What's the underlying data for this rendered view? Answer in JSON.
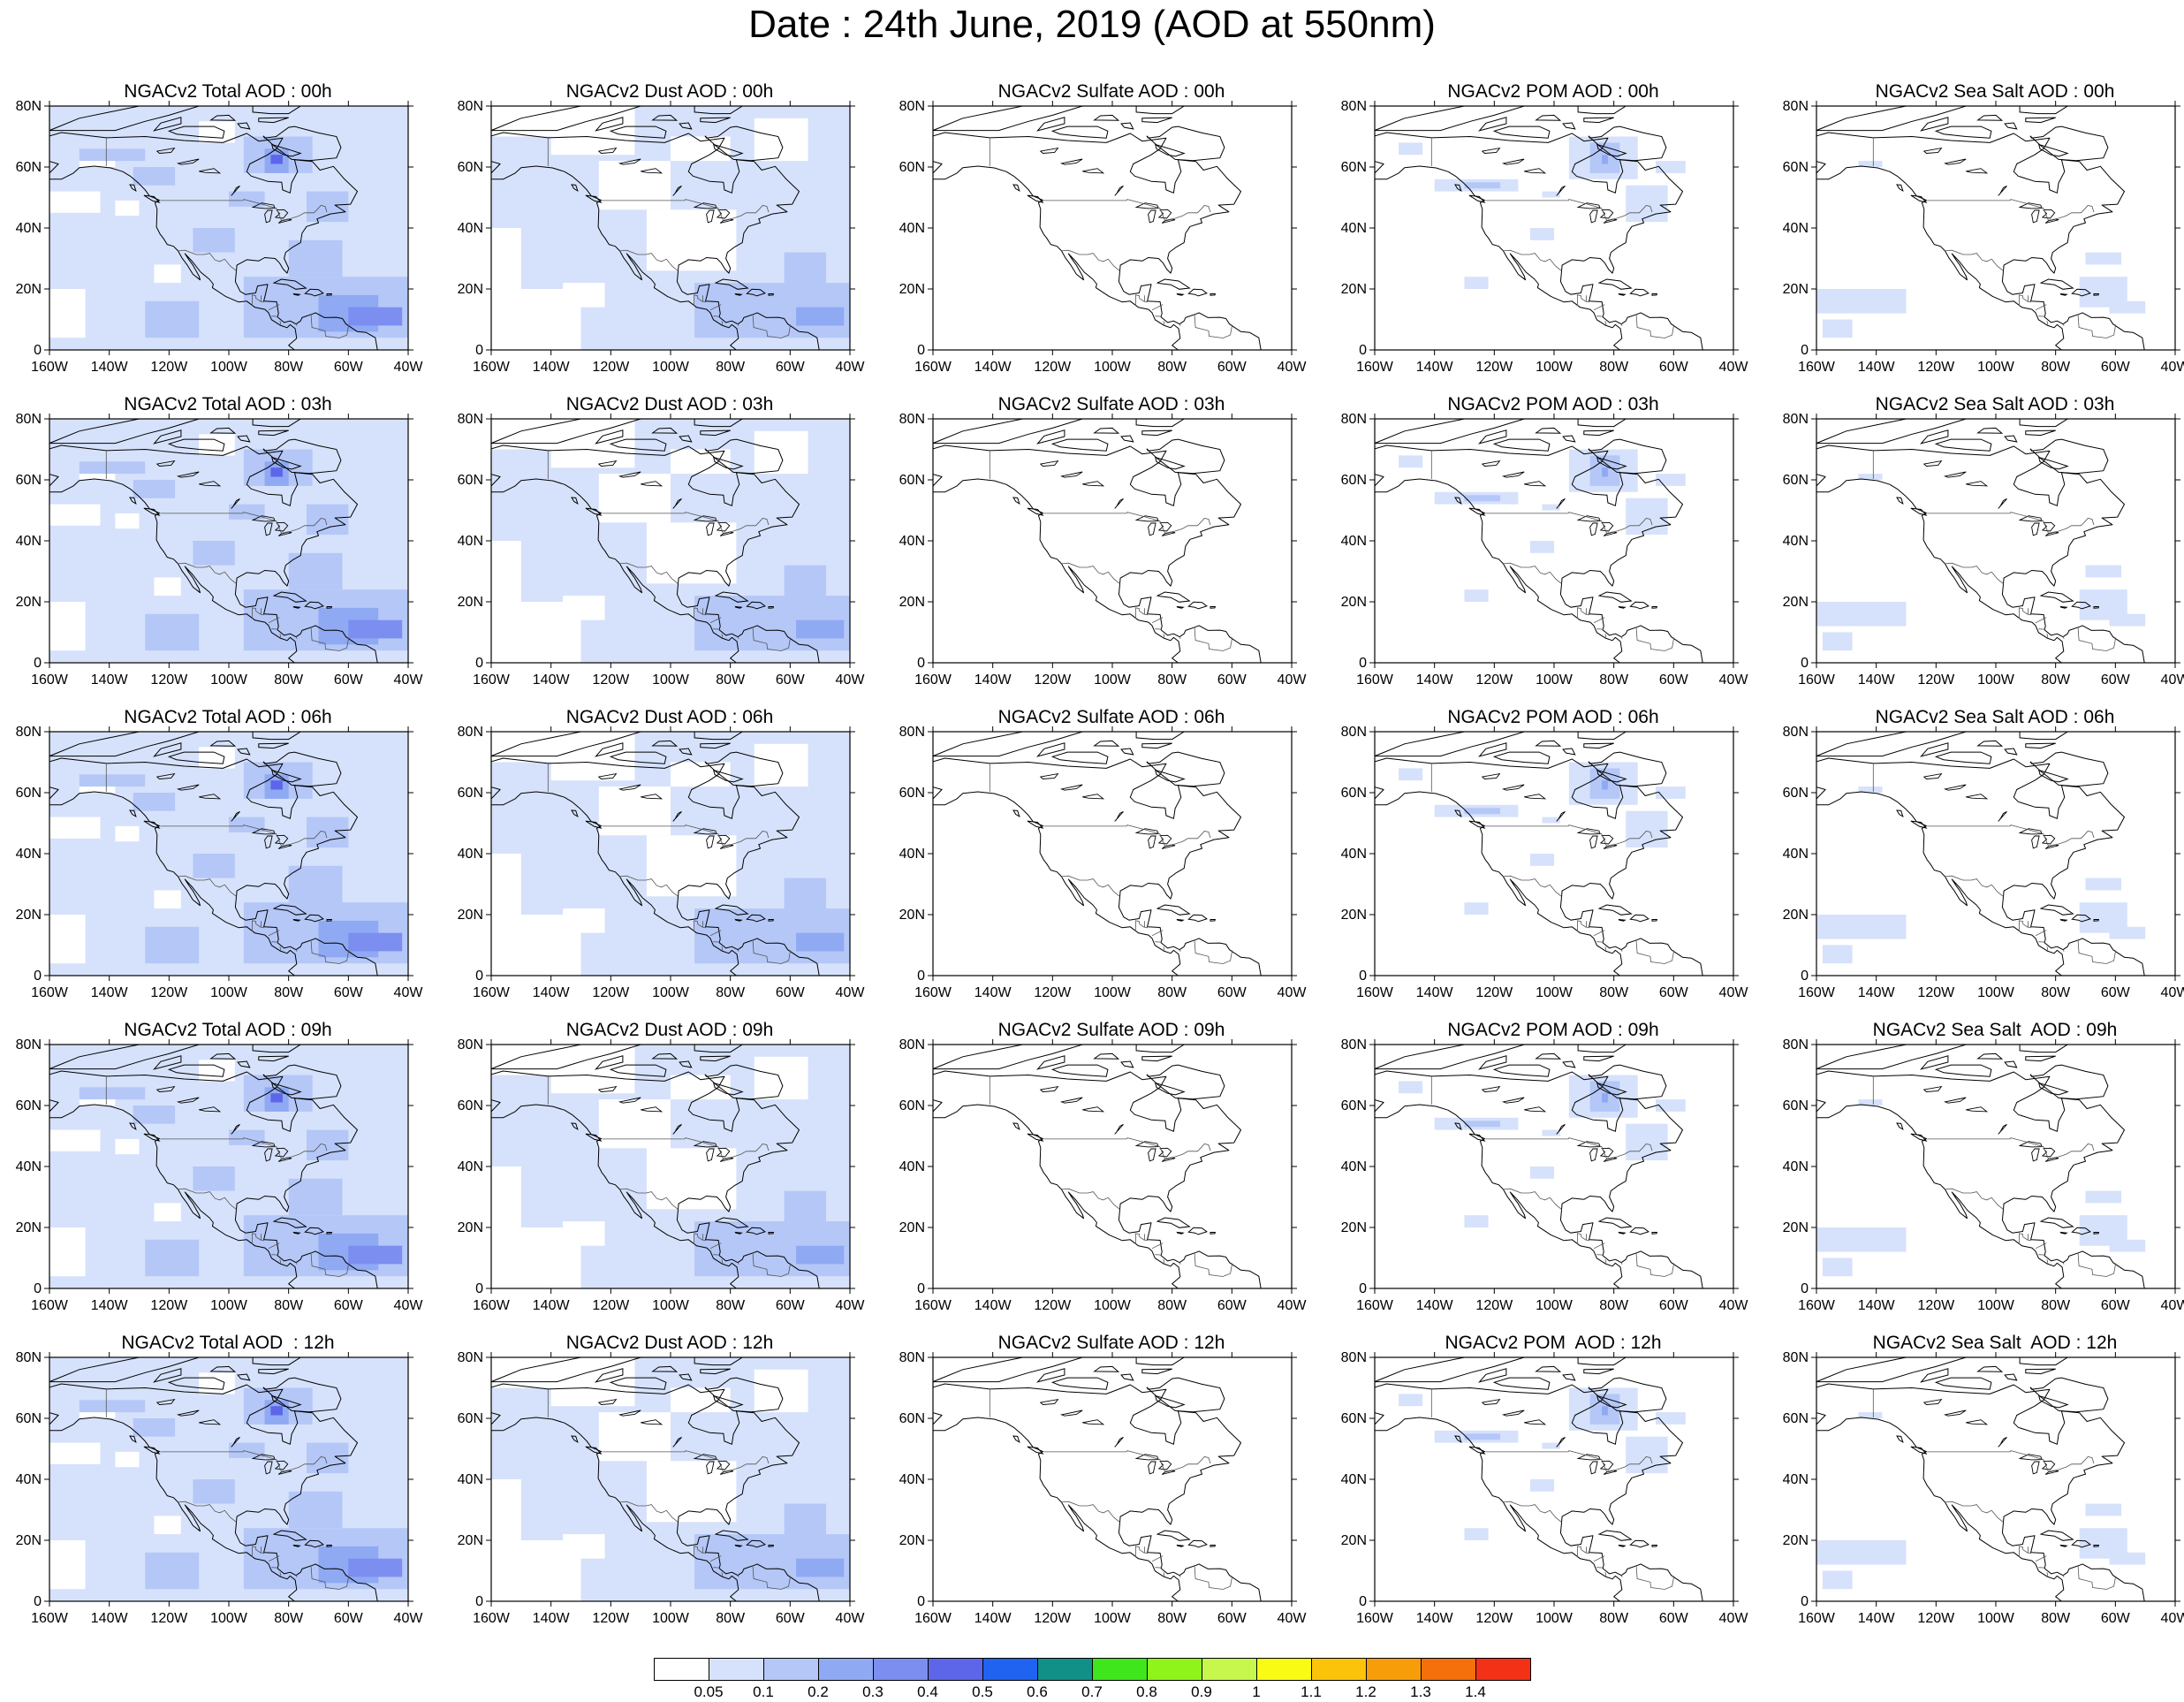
{
  "title": "Date : 24th June, 2019 (AOD at 550nm)",
  "map_axes": {
    "lat_ticks": [
      "80N",
      "60N",
      "40N",
      "20N",
      "0"
    ],
    "lon_ticks": [
      "160W",
      "140W",
      "120W",
      "100W",
      "80W",
      "60W",
      "40W"
    ]
  },
  "panels": [
    {
      "title": "NGACv2 Total AOD : 00h",
      "species": "total"
    },
    {
      "title": "NGACv2 Dust AOD : 00h",
      "species": "dust"
    },
    {
      "title": "NGACv2 Sulfate AOD : 00h",
      "species": "sulfate"
    },
    {
      "title": "NGACv2 POM AOD : 00h",
      "species": "pom"
    },
    {
      "title": "NGACv2 Sea Salt AOD : 00h",
      "species": "seasalt"
    },
    {
      "title": "NGACv2 Total AOD : 03h",
      "species": "total"
    },
    {
      "title": "NGACv2 Dust AOD : 03h",
      "species": "dust"
    },
    {
      "title": "NGACv2 Sulfate AOD : 03h",
      "species": "sulfate"
    },
    {
      "title": "NGACv2 POM AOD : 03h",
      "species": "pom"
    },
    {
      "title": "NGACv2 Sea Salt AOD : 03h",
      "species": "seasalt"
    },
    {
      "title": "NGACv2 Total AOD : 06h",
      "species": "total"
    },
    {
      "title": "NGACv2 Dust AOD : 06h",
      "species": "dust"
    },
    {
      "title": "NGACv2 Sulfate AOD : 06h",
      "species": "sulfate"
    },
    {
      "title": "NGACv2 POM AOD : 06h",
      "species": "pom"
    },
    {
      "title": "NGACv2 Sea Salt AOD : 06h",
      "species": "seasalt"
    },
    {
      "title": "NGACv2 Total AOD : 09h",
      "species": "total"
    },
    {
      "title": "NGACv2 Dust AOD : 09h",
      "species": "dust"
    },
    {
      "title": "NGACv2 Sulfate AOD : 09h",
      "species": "sulfate"
    },
    {
      "title": "NGACv2 POM AOD : 09h",
      "species": "pom"
    },
    {
      "title": "NGACv2 Sea Salt  AOD : 09h",
      "species": "seasalt"
    },
    {
      "title": "NGACv2 Total AOD  : 12h",
      "species": "total"
    },
    {
      "title": "NGACv2 Dust AOD : 12h",
      "species": "dust"
    },
    {
      "title": "NGACv2 Sulfate AOD : 12h",
      "species": "sulfate"
    },
    {
      "title": "NGACv2 POM  AOD : 12h",
      "species": "pom"
    },
    {
      "title": "NGACv2 Sea Salt  AOD : 12h",
      "species": "seasalt"
    }
  ],
  "colorbar": {
    "labels": [
      "0.05",
      "0.1",
      "0.2",
      "0.3",
      "0.4",
      "0.5",
      "0.6",
      "0.7",
      "0.8",
      "0.9",
      "1",
      "1.1",
      "1.2",
      "1.3",
      "1.4"
    ],
    "colors": [
      "#ffffff",
      "#d6e2fb",
      "#b4c7f7",
      "#8fa9f3",
      "#7c8ef0",
      "#5d66e8",
      "#1f63f0",
      "#119088",
      "#3ee61b",
      "#8ef41a",
      "#c7f64d",
      "#f9fb14",
      "#fbc30a",
      "#f89d0a",
      "#f56f0a",
      "#f33116"
    ]
  }
}
